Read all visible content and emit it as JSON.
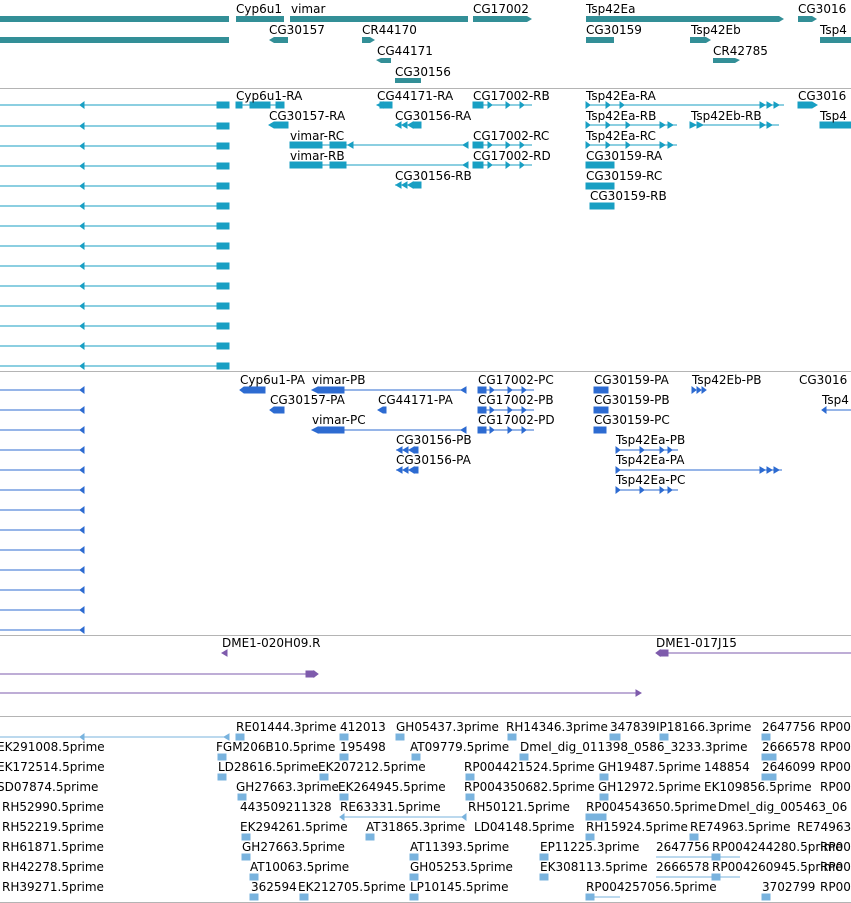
{
  "colors": {
    "gene": "#338f97",
    "mrna": "#189fc3",
    "protein": "#2d6bd1",
    "clone": "#7e5bac",
    "est": "#79b3de",
    "separator": "#b4b4b4"
  },
  "tracks": {
    "genes": {
      "labels": [
        "Cyp6u1",
        "vimar",
        "CG17002",
        "Tsp42Ea",
        "CG3016",
        "CG30157",
        "CR44170",
        "CG30159",
        "Tsp42Eb",
        "Tsp4",
        "CG44171",
        "CR42785",
        "CG30156"
      ]
    },
    "transcripts": {
      "labels": [
        "Cyp6u1-RA",
        "CG44171-RA",
        "CG17002-RB",
        "Tsp42Ea-RA",
        "CG3016",
        "CG30157-RA",
        "CG30156-RA",
        "Tsp42Ea-RB",
        "Tsp42Eb-RB",
        "Tsp4",
        "vimar-RC",
        "CG17002-RC",
        "Tsp42Ea-RC",
        "vimar-RB",
        "CG17002-RD",
        "CG30159-RA",
        "CG30156-RB",
        "CG30159-RC",
        "CG30159-RB"
      ]
    },
    "proteins": {
      "labels": [
        "Cyp6u1-PA",
        "vimar-PB",
        "CG17002-PC",
        "CG30159-PA",
        "Tsp42Eb-PB",
        "CG3016",
        "CG30157-PA",
        "CG44171-PA",
        "CG17002-PB",
        "CG30159-PB",
        "Tsp4",
        "vimar-PC",
        "CG17002-PD",
        "CG30159-PC",
        "CG30156-PB",
        "Tsp42Ea-PB",
        "CG30156-PA",
        "Tsp42Ea-PA",
        "Tsp42Ea-PC"
      ]
    },
    "clones": {
      "labels": [
        "DME1-020H09.R",
        "DME1-017J15"
      ]
    },
    "ests": {
      "labels": [
        "RE01444.3prime",
        "412013",
        "GH05437.3prime",
        "RH14346.3prime",
        "347839",
        "IP18166.3prime",
        "2647756",
        "RP00",
        "EK291008.5prime",
        "FGM206B10.5prime",
        "195498",
        "AT09779.5prime",
        "Dmel_dig_011398_0586_3233.3prime",
        "2666578",
        "RP00",
        "EK172514.5prime",
        "LD28616.5prime",
        "EK207212.5prime",
        "RP004421524.5prime",
        "GH19487.5prime",
        "148854",
        "2646099",
        "RP00",
        "SD07874.5prime",
        "GH27663.3prime",
        "EK264945.5prime",
        "RP004350682.5prime",
        "GH12972.5prime",
        "EK109856.5prime",
        "RP00",
        "RH52990.5prime",
        "443509211328",
        "RE63331.5prime",
        "RH50121.5prime",
        "RP004543650.5prime",
        "Dmel_dig_005463_06",
        "RH52219.5prime",
        "EK294261.5prime",
        "AT31865.3prime",
        "LD04148.5prime",
        "RH15924.5prime",
        "RE74963.5prime",
        "RE74963",
        "RH61871.5prime",
        "GH27663.5prime",
        "AT11393.5prime",
        "EP11225.3prime",
        "2647756",
        "RP004244280.5prime",
        "RP00",
        "RH42278.5prime",
        "AT10063.5prime",
        "GH05253.5prime",
        "EK308113.5prime",
        "2666578",
        "RP004260945.5prime",
        "RP00",
        "RH39271.5prime",
        "362594",
        "EK212705.5prime",
        "LP10145.5prime",
        "RP004257056.5prime",
        "3702799",
        "RP00"
      ]
    }
  }
}
